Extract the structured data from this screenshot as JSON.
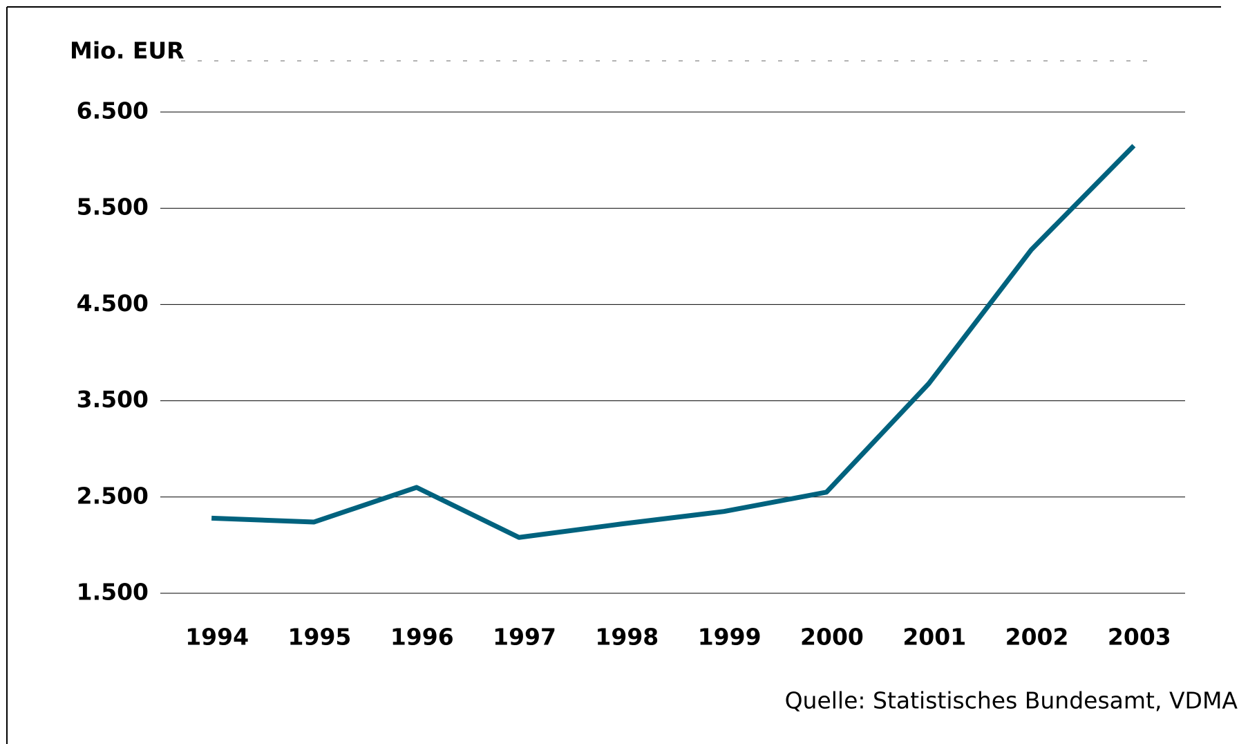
{
  "chart_data": {
    "type": "line",
    "title": "Mio. EUR",
    "source": "Quelle: Statistisches Bundesamt, VDMA",
    "categories": [
      "1994",
      "1995",
      "1996",
      "1997",
      "1998",
      "1999",
      "2000",
      "2001",
      "2002",
      "2003"
    ],
    "series": [
      {
        "color": "#00627e",
        "values": [
          2280,
          2240,
          2600,
          2080,
          2220,
          2350,
          2550,
          3680,
          5070,
          6150
        ]
      }
    ],
    "ylim": [
      1500,
      6500
    ],
    "yticks": [
      {
        "value": 1500,
        "label": "1.500"
      },
      {
        "value": 2500,
        "label": "2.500"
      },
      {
        "value": 3500,
        "label": "3.500"
      },
      {
        "value": 4500,
        "label": "4.500"
      },
      {
        "value": 5500,
        "label": "5.500"
      },
      {
        "value": 6500,
        "label": "6.500"
      }
    ],
    "grid": true
  }
}
